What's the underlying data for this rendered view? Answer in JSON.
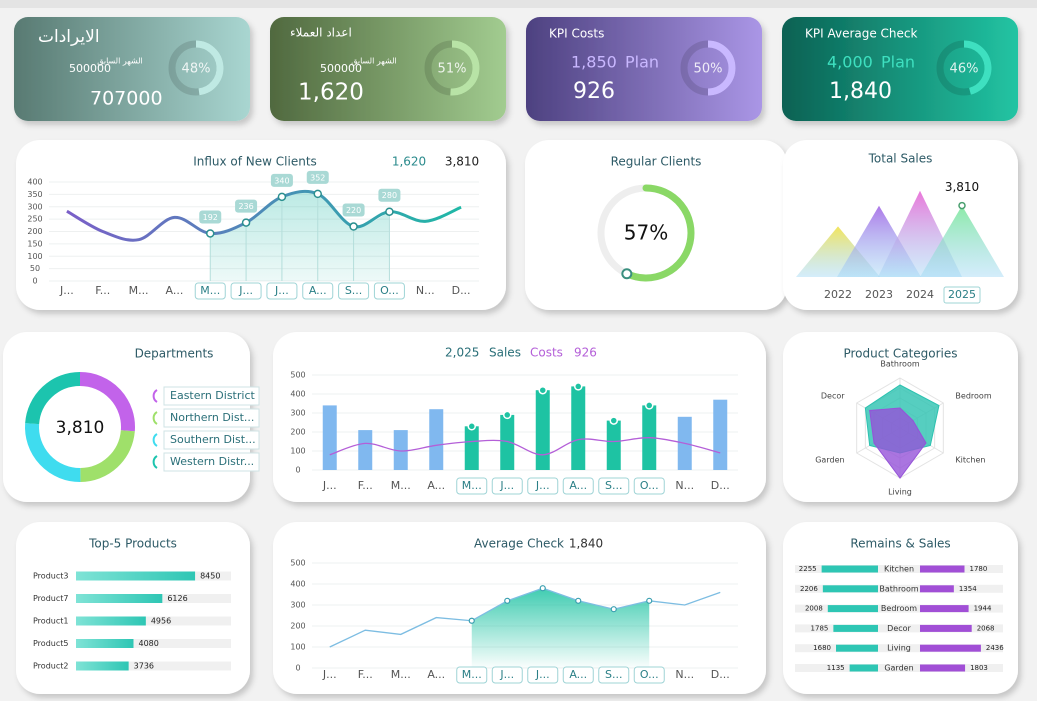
{
  "kpis": [
    {
      "title": "الايرادات",
      "prev_label": "الشهر السابق",
      "prev": "500000",
      "value": "707000",
      "pct": 48,
      "pct_label": "48%",
      "colors": [
        "#587a72",
        "#a9d6d1"
      ],
      "ring_color": "#bfe9e3"
    },
    {
      "title": "اعداد العملاء",
      "prev_label": "الشهر السابق",
      "prev": "500000",
      "value": "1,620",
      "pct": 51,
      "pct_label": "51%",
      "colors": [
        "#50693f",
        "#a2cc90"
      ],
      "ring_color": "#b8e3a6"
    },
    {
      "title": "KPI Costs",
      "plan": "1,850",
      "plan_label": "Plan",
      "value": "926",
      "pct": 50,
      "pct_label": "50%",
      "colors": [
        "#4d4180",
        "#aa96e6"
      ],
      "ring_color": "#c9b8ff"
    },
    {
      "title": "KPI Average Check",
      "plan": "4,000",
      "plan_label": "Plan",
      "value": "1,840",
      "pct": 46,
      "pct_label": "46%",
      "colors": [
        "#0b6153",
        "#22c4a3"
      ],
      "ring_color": "#3ee0c0"
    }
  ],
  "chart_data": [
    {
      "type": "line",
      "title": "Influx of New Clients",
      "header_values": [
        "1,620",
        "3,810"
      ],
      "categories": [
        "J...",
        "F...",
        "M...",
        "A...",
        "M...",
        "J...",
        "J...",
        "A...",
        "S...",
        "O...",
        "N...",
        "D..."
      ],
      "values": [
        282,
        200,
        167,
        257,
        192,
        236,
        340,
        352,
        220,
        280,
        241,
        298
      ],
      "ylim": [
        0,
        400
      ],
      "yticks": [
        0,
        50,
        100,
        150,
        200,
        250,
        300,
        350,
        400
      ],
      "grid": true,
      "selected": [
        4,
        9
      ],
      "colors": [
        "#7a5fc8",
        "#1fb8a6"
      ]
    },
    {
      "type": "gauge",
      "title": "Regular Clients",
      "value": 57,
      "value_label": "57%",
      "color": "#8ad866"
    },
    {
      "type": "peaks",
      "title": "Total Sales",
      "categories": [
        "2022",
        "2023",
        "2024",
        "2025"
      ],
      "values": [
        2700,
        3800,
        4600,
        3810
      ],
      "value_labels": [
        null,
        null,
        null,
        "3,810"
      ],
      "ylim": [
        0,
        4800
      ],
      "colors": [
        "#f2e24a",
        "#a46ae6",
        "#e868d6",
        "#7fe89c"
      ],
      "selected": 3
    },
    {
      "type": "donut",
      "title": "Departments",
      "center_label": "3,810",
      "categories": [
        "Eastern District",
        "Northern Dist...",
        "Southern Dist...",
        "Western Distr..."
      ],
      "values": [
        1000,
        900,
        1000,
        910
      ],
      "colors": [
        "#c263ea",
        "#9fe06a",
        "#3fdcef",
        "#1cc4ae"
      ]
    },
    {
      "type": "combo",
      "sales_total": "2,025",
      "costs_total": "926",
      "categories": [
        "J...",
        "F...",
        "M...",
        "A...",
        "M...",
        "J...",
        "J...",
        "A...",
        "S...",
        "O...",
        "N...",
        "D..."
      ],
      "series": [
        {
          "name": "Sales",
          "color": "#80b8ef",
          "highlight_color": "#1ec3a3",
          "values": [
            340,
            210,
            210,
            320,
            230,
            290,
            420,
            440,
            260,
            340,
            280,
            370
          ]
        },
        {
          "name": "Costs",
          "color": "#b45fd8",
          "values": [
            80,
            140,
            100,
            130,
            150,
            150,
            80,
            160,
            150,
            170,
            140,
            90
          ]
        }
      ],
      "ylim": [
        0,
        500
      ],
      "yticks": [
        0,
        100,
        200,
        300,
        400,
        500
      ],
      "grid": true,
      "selected": [
        4,
        9
      ]
    },
    {
      "type": "radar",
      "title": "Product Categories",
      "categories": [
        "Bathroom",
        "Bedroom",
        "Kitchen",
        "Living",
        "Garden",
        "Decor"
      ],
      "series": [
        {
          "color": "#2cc2b0",
          "values": [
            8.6,
            9,
            7,
            5,
            7,
            8
          ]
        },
        {
          "color": "#9553d8",
          "values": [
            4,
            3,
            6,
            10,
            6,
            7
          ]
        }
      ],
      "rlim": [
        0,
        10
      ]
    },
    {
      "type": "hbar",
      "title": "Top-5 Products",
      "categories": [
        "Product3",
        "Product7",
        "Product1",
        "Product5",
        "Product2"
      ],
      "values": [
        8450,
        6126,
        4956,
        4080,
        3736
      ],
      "xlim": [
        0,
        11000
      ],
      "color": "#2ec6b4"
    },
    {
      "type": "area",
      "title": "Average Check",
      "header_value": "1,840",
      "categories": [
        "J...",
        "F...",
        "M...",
        "A...",
        "M...",
        "J...",
        "J...",
        "A...",
        "S...",
        "O...",
        "N...",
        "D..."
      ],
      "values": [
        100,
        180,
        160,
        240,
        225,
        320,
        380,
        320,
        280,
        320,
        300,
        360
      ],
      "ylim": [
        0,
        500
      ],
      "yticks": [
        0,
        100,
        200,
        300,
        400,
        500
      ],
      "grid": true,
      "selected": [
        4,
        9
      ],
      "color": "#7dbde2",
      "fill_color": "#1ec3a3"
    },
    {
      "type": "butterfly",
      "title": "Remains & Sales",
      "categories": [
        "Kitchen",
        "Bathroom",
        "Bedroom",
        "Decor",
        "Living",
        "Garden"
      ],
      "series": [
        {
          "color": "#2ec6b4",
          "values": [
            2255,
            2206,
            2008,
            1785,
            1680,
            1135
          ]
        },
        {
          "color": "#a14fd6",
          "values": [
            1780,
            1354,
            1944,
            2068,
            2436,
            1803
          ]
        }
      ],
      "xlim": [
        0,
        2600
      ]
    }
  ]
}
